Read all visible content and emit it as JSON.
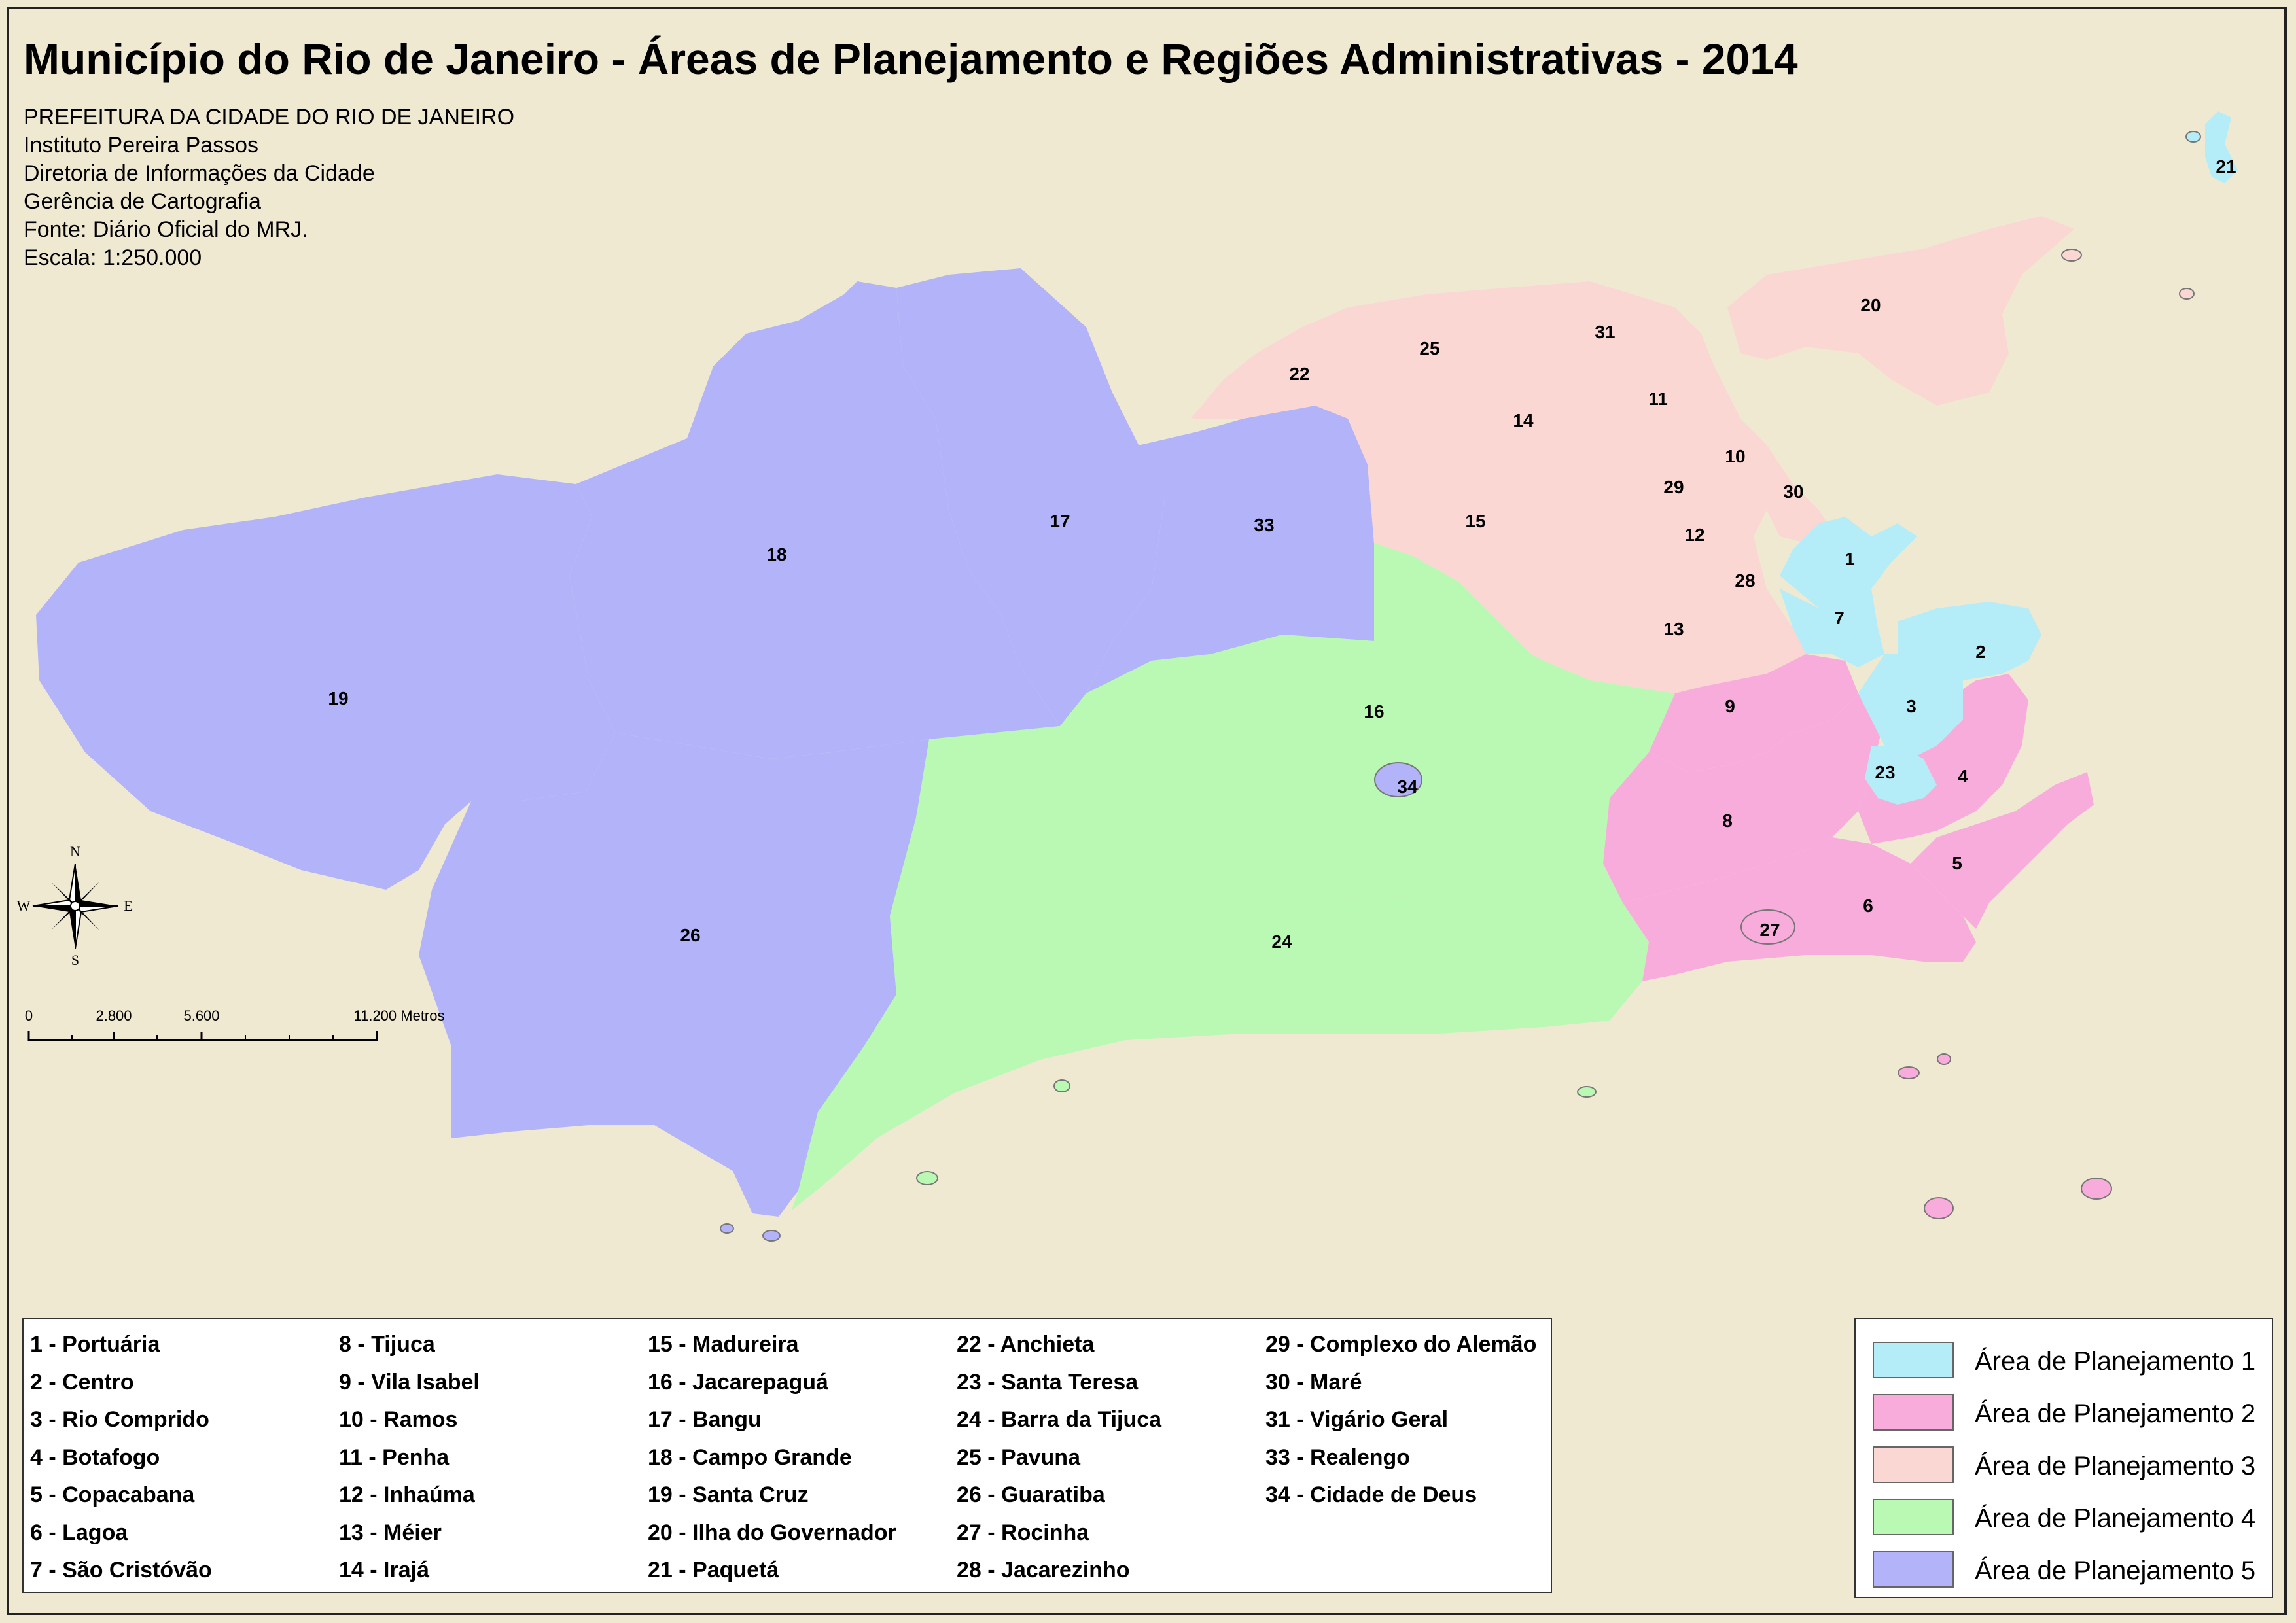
{
  "title": "Município do Rio de Janeiro - Áreas de Planejamento e Regiões Administrativas - 2014",
  "credits": [
    "PREFEITURA DA CIDADE DO RIO DE JANEIRO",
    "Instituto Pereira Passos",
    "Diretoria de Informações da Cidade",
    "Gerência de Cartografia",
    "Fonte: Diário Oficial do MRJ.",
    "Escala: 1:250.000"
  ],
  "compass": {
    "n": "N",
    "s": "S",
    "e": "E",
    "w": "W"
  },
  "scale": {
    "ticks": [
      "0",
      "2.800",
      "5.600",
      "11.200 Metros"
    ]
  },
  "region_labels": [
    "1",
    "2",
    "3",
    "4",
    "5",
    "6",
    "7",
    "8",
    "9",
    "10",
    "11",
    "12",
    "13",
    "14",
    "15",
    "16",
    "17",
    "18",
    "19",
    "20",
    "21",
    "22",
    "23",
    "24",
    "25",
    "26",
    "27",
    "28",
    "29",
    "30",
    "31",
    "33",
    "34"
  ],
  "legend_names": [
    [
      "1 - Portuária",
      "2 - Centro",
      "3 - Rio Comprido",
      "4 - Botafogo",
      "5 - Copacabana",
      "6 - Lagoa",
      "7 - São Cristóvão"
    ],
    [
      "8 - Tijuca",
      "9 - Vila Isabel",
      "10 - Ramos",
      "11 - Penha",
      "12 - Inhaúma",
      "13 - Méier",
      "14 - Irajá"
    ],
    [
      "15 - Madureira",
      "16 - Jacarepaguá",
      "17 - Bangu",
      "18 - Campo Grande",
      "19 - Santa Cruz",
      "20 - Ilha do Governador",
      "21 - Paquetá"
    ],
    [
      "22 - Anchieta",
      "23 - Santa Teresa",
      "24 - Barra da Tijuca",
      "25 - Pavuna",
      "26 - Guaratiba",
      "27 - Rocinha",
      "28 - Jacarezinho"
    ],
    [
      "29 - Complexo do Alemão",
      "30 - Maré",
      "31 - Vigário Geral",
      "33 - Realengo",
      "34 - Cidade de Deus"
    ]
  ],
  "areas": [
    {
      "label": "Área de Planejamento 1",
      "color": "#b4ecf7"
    },
    {
      "label": "Área de Planejamento 2",
      "color": "#f8acdc"
    },
    {
      "label": "Área de Planejamento 3",
      "color": "#fad7d3"
    },
    {
      "label": "Área de Planejamento 4",
      "color": "#b9f9b4"
    },
    {
      "label": "Área de Planejamento 5",
      "color": "#b3b3fa"
    }
  ]
}
